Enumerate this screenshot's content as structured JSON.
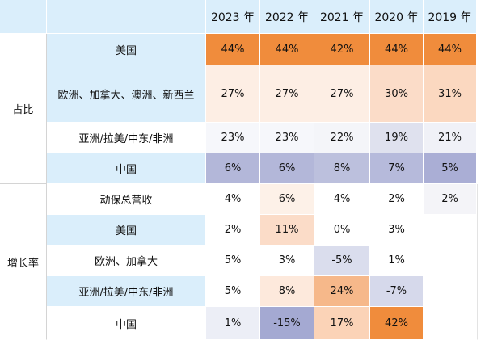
{
  "header": {
    "years": [
      "2023 年",
      "2022 年",
      "2021 年",
      "2020 年",
      "2019 年"
    ]
  },
  "groups": [
    {
      "title": "占比",
      "rows": [
        {
          "label": "美国",
          "values": [
            "44%",
            "44%",
            "42%",
            "44%",
            "44%"
          ],
          "colors": [
            "#f08c3c",
            "#f08c3c",
            "#f08c3c",
            "#f08c3c",
            "#f08c3c"
          ]
        },
        {
          "label": "欧洲、加拿大、澳洲、新西兰",
          "values": [
            "27%",
            "27%",
            "27%",
            "30%",
            "31%"
          ],
          "colors": [
            "#fdeee4",
            "#fdeee4",
            "#fdeee4",
            "#fbdcc8",
            "#fbd8c0"
          ]
        },
        {
          "label": "亚洲/拉美/中东/非洲",
          "values": [
            "23%",
            "23%",
            "22%",
            "19%",
            "21%"
          ],
          "colors": [
            "#f6f7fb",
            "#f6f7fb",
            "#f4f5f9",
            "#dfe1ee",
            "#f0f1f7"
          ]
        },
        {
          "label": "中国",
          "values": [
            "6%",
            "6%",
            "8%",
            "7%",
            "5%"
          ],
          "colors": [
            "#b3b7d9",
            "#b3b7d9",
            "#bcc0dd",
            "#b6badb",
            "#aaaed5"
          ]
        }
      ]
    },
    {
      "title": "增长率",
      "rows": [
        {
          "label": "动保总营收",
          "values": [
            "4%",
            "6%",
            "4%",
            "2%",
            "2%"
          ],
          "colors": [
            "#ffffff",
            "#fdf1e8",
            "#ffffff",
            "#ffffff",
            "#f4f4f8"
          ]
        },
        {
          "label": "美国",
          "values": [
            "2%",
            "11%",
            "0%",
            "3%",
            ""
          ],
          "colors": [
            "#ffffff",
            "#fbdcc8",
            "#ffffff",
            "#ffffff",
            "#ffffff"
          ]
        },
        {
          "label": "欧洲、加拿大",
          "values": [
            "5%",
            "3%",
            "-5%",
            "1%",
            ""
          ],
          "colors": [
            "#ffffff",
            "#ffffff",
            "#dadded",
            "#ffffff",
            "#ffffff"
          ]
        },
        {
          "label": "亚洲/拉美/中东/非洲",
          "values": [
            "5%",
            "8%",
            "24%",
            "-7%",
            ""
          ],
          "colors": [
            "#ffffff",
            "#fde9dc",
            "#f6b88a",
            "#d6d9eb",
            "#ffffff"
          ]
        },
        {
          "label": "中国",
          "values": [
            "1%",
            "-15%",
            "17%",
            "42%",
            ""
          ],
          "colors": [
            "#eceef6",
            "#a4a9d2",
            "#fbd3b7",
            "#f08c3c",
            "#ffffff"
          ]
        }
      ]
    }
  ]
}
